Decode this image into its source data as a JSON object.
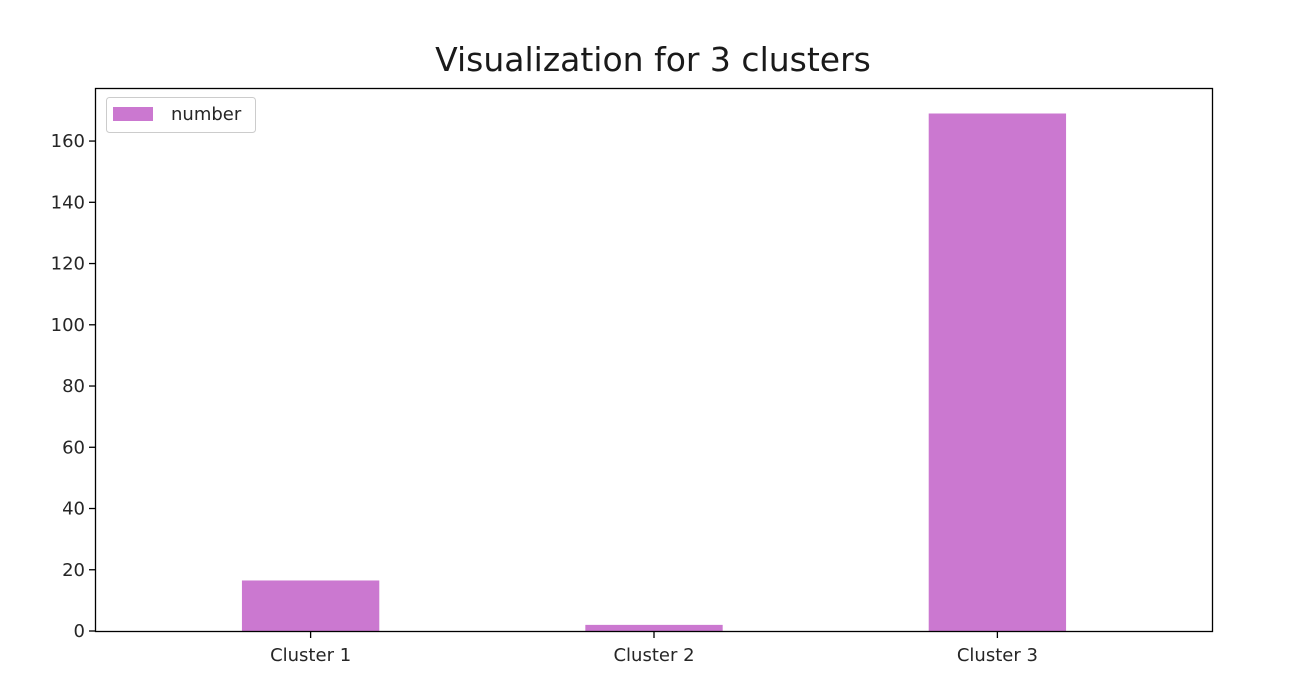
{
  "chart_data": {
    "type": "bar",
    "title": "Visualization for 3 clusters",
    "categories": [
      "Cluster 1",
      "Cluster 2",
      "Cluster 3"
    ],
    "series": [
      {
        "name": "number",
        "values": [
          16.5,
          2,
          169
        ],
        "color": "#cb78d0"
      }
    ],
    "xlabel": "",
    "ylabel": "",
    "ylim": [
      0,
      177
    ],
    "yticks": [
      0,
      20,
      40,
      60,
      80,
      100,
      120,
      140,
      160
    ],
    "grid": false,
    "legend_position": "top-left"
  }
}
